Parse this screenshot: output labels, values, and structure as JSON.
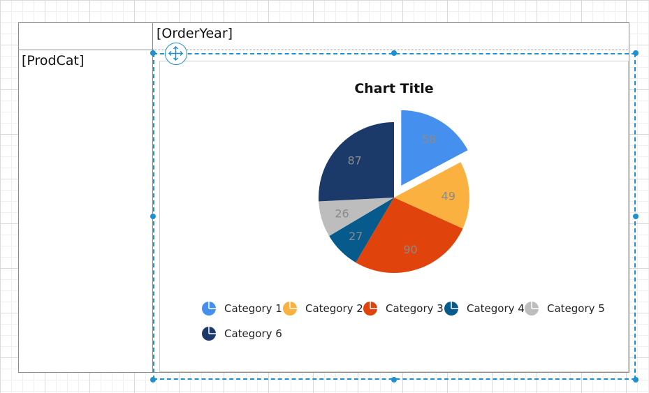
{
  "report": {
    "column_group_field": "[OrderYear]",
    "row_group_field": "[ProdCat]"
  },
  "chart_data": {
    "type": "pie",
    "title": "Chart Title",
    "categories": [
      "Category 1",
      "Category 2",
      "Category 3",
      "Category 4",
      "Category 5",
      "Category 6"
    ],
    "values": [
      58,
      49,
      90,
      27,
      26,
      87
    ],
    "colors": [
      "#4590ee",
      "#fbb13f",
      "#e0430b",
      "#065a8c",
      "#bdbdbd",
      "#1b3a69"
    ],
    "exploded": [
      "Category 1"
    ],
    "data_labels": true,
    "legend_position": "bottom"
  }
}
